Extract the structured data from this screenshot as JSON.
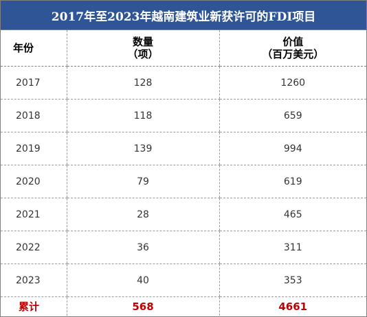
{
  "title": "2017年至2023年越南建筑业新获许可的FDI项目",
  "headers": {
    "year": "年份",
    "count_line1": "数量",
    "count_line2": "（项）",
    "value_line1": "价值",
    "value_line2": "（百万美元）"
  },
  "rows": [
    {
      "year": "2017",
      "count": "128",
      "value": "1260"
    },
    {
      "year": "2018",
      "count": "118",
      "value": "659"
    },
    {
      "year": "2019",
      "count": "139",
      "value": "994"
    },
    {
      "year": "2020",
      "count": "79",
      "value": "619"
    },
    {
      "year": "2021",
      "count": "28",
      "value": "465"
    },
    {
      "year": "2022",
      "count": "36",
      "value": "311"
    },
    {
      "year": "2023",
      "count": "40",
      "value": "353"
    }
  ],
  "total": {
    "label": "累计",
    "count": "568",
    "value": "4661"
  },
  "colors": {
    "header_bg": "#2f5597",
    "total_text": "#c00000"
  }
}
